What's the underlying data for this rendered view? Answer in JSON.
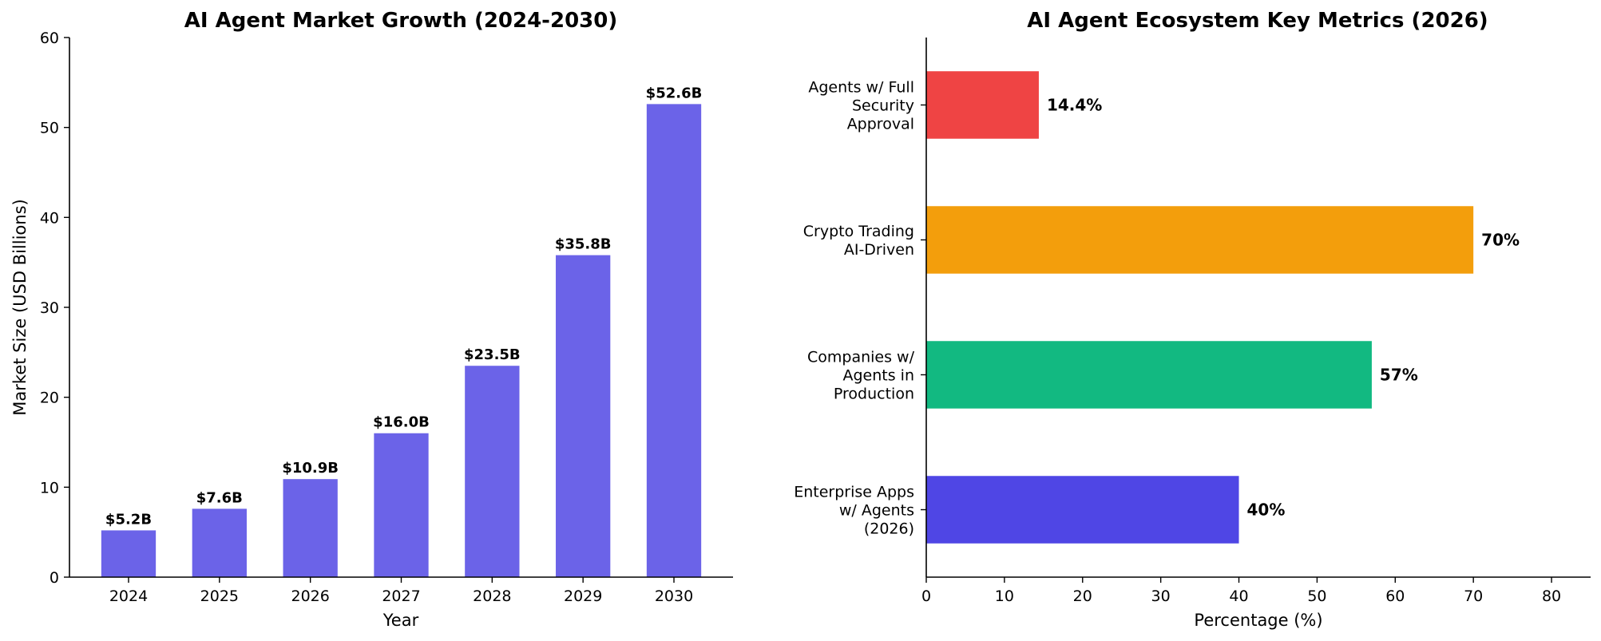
{
  "chart_data": [
    {
      "type": "bar",
      "title": "AI Agent Market Growth (2024-2030)",
      "xlabel": "Year",
      "ylabel": "Market Size (USD Billions)",
      "categories": [
        "2024",
        "2025",
        "2026",
        "2027",
        "2028",
        "2029",
        "2030"
      ],
      "values": [
        5.2,
        7.6,
        10.9,
        16.0,
        23.5,
        35.8,
        52.6
      ],
      "data_labels": [
        "$5.2B",
        "$7.6B",
        "$10.9B",
        "$16.0B",
        "$23.5B",
        "$35.8B",
        "$52.6B"
      ],
      "ylim": [
        0,
        60
      ],
      "yticks": [
        "0",
        "10",
        "20",
        "30",
        "40",
        "50",
        "60"
      ],
      "color": "#6b63e8",
      "grid": false
    },
    {
      "type": "bar",
      "orientation": "horizontal",
      "title": "AI Agent Ecosystem Key Metrics (2026)",
      "xlabel": "Percentage (%)",
      "ylabel": "",
      "categories": [
        [
          "Enterprise Apps",
          "w/ Agents",
          "(2026)"
        ],
        [
          "Companies w/",
          "Agents in",
          "Production"
        ],
        [
          "Crypto Trading",
          "AI-Driven"
        ],
        [
          "Agents w/ Full",
          "Security",
          "Approval"
        ]
      ],
      "values": [
        40,
        57,
        70,
        14.4
      ],
      "data_labels": [
        "40%",
        "57%",
        "70%",
        "14.4%"
      ],
      "colors": [
        "#4f46e5",
        "#12b981",
        "#f39e0c",
        "#ef4444"
      ],
      "xlim": [
        0,
        85
      ],
      "xticks": [
        "0",
        "10",
        "20",
        "30",
        "40",
        "50",
        "60",
        "70",
        "80"
      ],
      "grid": false
    }
  ]
}
